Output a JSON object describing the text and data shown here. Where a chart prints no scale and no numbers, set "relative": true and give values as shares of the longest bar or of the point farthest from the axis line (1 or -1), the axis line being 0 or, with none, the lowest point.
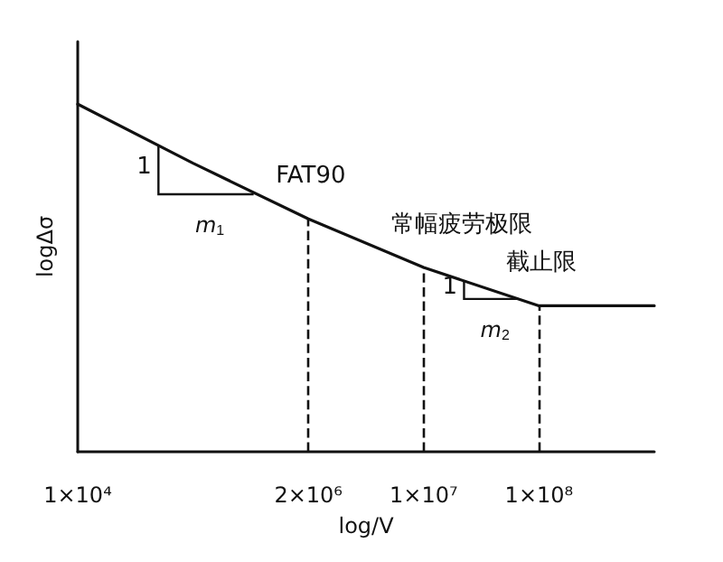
{
  "chart_data": {
    "type": "line",
    "relative": true,
    "xlabel": "log/V",
    "ylabel": "logΔσ",
    "categories": [
      "1×10⁴",
      null,
      "2×10⁶",
      "1×10⁷",
      "1×10⁸",
      null
    ],
    "series": [
      {
        "color": "#111111",
        "values": [
          1,
          0.83,
          0.67,
          0.53,
          0.42,
          0.42
        ]
      }
    ],
    "marker": "none",
    "line_style": "solid",
    "grid": false,
    "ref_lines": [
      {
        "axis": "x",
        "value": "2×10⁶",
        "line_style": "dashed"
      },
      {
        "axis": "x",
        "value": "1×10⁷",
        "line_style": "dashed"
      },
      {
        "axis": "x",
        "value": "1×10⁸",
        "line_style": "dashed"
      }
    ],
    "annotations": [
      {
        "text": "FAT90",
        "x": "2×10⁶",
        "y": 0.67
      },
      {
        "text": "常幅疲劳极限",
        "x": "1×10⁷",
        "y": 0.53
      },
      {
        "text": "截止限",
        "x": "1×10⁸",
        "y": 0.42
      },
      "1",
      "m$_{1}$",
      "1",
      "m$_{2}$"
    ]
  }
}
